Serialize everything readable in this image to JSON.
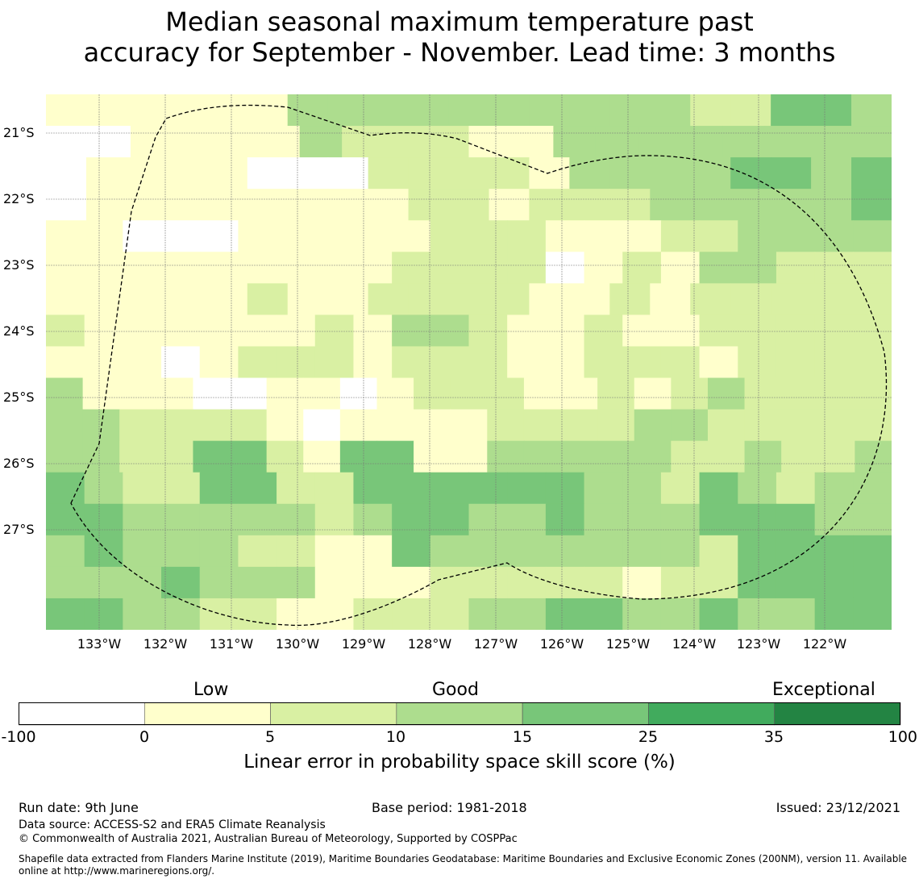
{
  "title": {
    "line1": "Median seasonal maximum temperature past",
    "line2": "accuracy for September - November. Lead time: 3 months"
  },
  "map": {
    "lat_labels": [
      "21°S",
      "22°S",
      "23°S",
      "24°S",
      "25°S",
      "26°S",
      "27°S"
    ],
    "lon_labels": [
      "133°W",
      "132°W",
      "131°W",
      "130°W",
      "129°W",
      "128°W",
      "127°W",
      "126°W",
      "125°W",
      "124°W",
      "123°W",
      "122°W"
    ],
    "category_colors": {
      "A": "#ffffff",
      "B": "#ffffcc",
      "C": "#d9f0a3",
      "D": "#addd8e",
      "E": "#78c679"
    },
    "grid_rows": [
      "BBBBBBDDDDDDDDDDCCEED",
      "AABBBBDCCCBBDDDDDDDD",
      "ABBBBAAACCCCBDDDDEEDE",
      "ABBBBBBBBCCBCCCDDDDDE",
      "BBAAABBBBBCCCBBBCCDDDD",
      "BBBBBBBBBCCCCABCBDDCCC",
      "BBBBBCBBCCCCBBCBCCCCC",
      "CBBBBBBCBDDCBBCBBCCCCC",
      "BBBABCCCBCCCBBCCCBCCCC",
      "DBBBAABBABCCCBBCBCDCCCC",
      "DDCCCCBABBBBCCCCDDCCCCC",
      "DDCCEECBEEBBDDDDDCCDCCD",
      "EDCCEECCEEEEEEDDCEDCDD",
      "EEDDDDDCDEEDDEDDDEEEDD",
      "DEDDDCCBBEDDDDDDDCEEEE",
      "DDDEDDDBBBCCCCCBCCEEEE",
      "EEDDCCBBCCCDDEEDDEDDEE"
    ]
  },
  "colorbar": {
    "categories": [
      {
        "label": "Low",
        "position": 1.5
      },
      {
        "label": "Good",
        "position": 3.5
      },
      {
        "label": "Exceptional",
        "position": 6.4
      }
    ],
    "bins": [
      {
        "from": -100,
        "to": 0,
        "color": "#ffffff"
      },
      {
        "from": 0,
        "to": 5,
        "color": "#ffffcc"
      },
      {
        "from": 5,
        "to": 10,
        "color": "#d9f0a3"
      },
      {
        "from": 10,
        "to": 15,
        "color": "#addd8e"
      },
      {
        "from": 15,
        "to": 25,
        "color": "#78c679"
      },
      {
        "from": 25,
        "to": 35,
        "color": "#41ab5d"
      },
      {
        "from": 35,
        "to": 100,
        "color": "#238443"
      }
    ],
    "ticks": [
      "-100",
      "0",
      "5",
      "10",
      "15",
      "25",
      "35",
      "100"
    ],
    "title": "Linear error in probability space skill score (%)"
  },
  "footer": {
    "run_date": "Run date: 9th June",
    "base_period": "Base period: 1981-2018",
    "issued": "Issued: 23/12/2021",
    "data_source": "Data source: ACCESS-S2 and ERA5 Climate Reanalysis",
    "copyright": "© Commonwealth of Australia 2021, Australian Bureau of Meteorology, Supported by COSPPac",
    "shapefile_line1": "Shapefile data extracted from Flanders Marine Institute (2019), Maritime Boundaries Geodatabase: Maritime Boundaries and Exclusive Economic Zones (200NM), version 11. Available",
    "shapefile_line2": "online at http://www.marineregions.org/."
  }
}
